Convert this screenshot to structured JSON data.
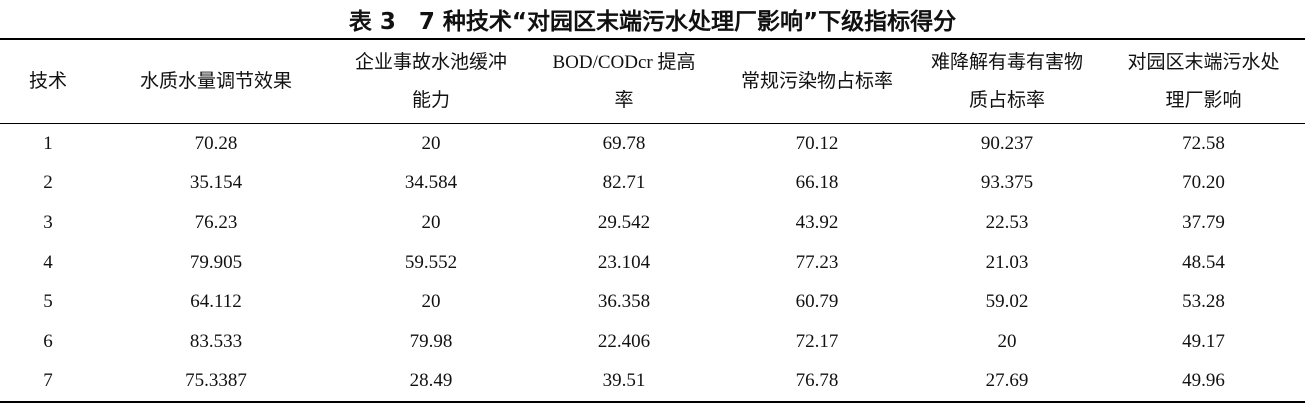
{
  "title": "表 3　7 种技术“对园区末端污水处理厂影响”下级指标得分",
  "table": {
    "header": [
      [
        "技术"
      ],
      [
        "水质水量调节效果"
      ],
      [
        "企业事故水池缓冲",
        "能力"
      ],
      [
        "BOD/CODcr 提高",
        "率"
      ],
      [
        "常规污染物占标率"
      ],
      [
        "难降解有毒有害物",
        "质占标率"
      ],
      [
        "对园区末端污水处",
        "理厂影响"
      ]
    ],
    "rows": [
      [
        "1",
        "70.28",
        "20",
        "69.78",
        "70.12",
        "90.237",
        "72.58"
      ],
      [
        "2",
        "35.154",
        "34.584",
        "82.71",
        "66.18",
        "93.375",
        "70.20"
      ],
      [
        "3",
        "76.23",
        "20",
        "29.542",
        "43.92",
        "22.53",
        "37.79"
      ],
      [
        "4",
        "79.905",
        "59.552",
        "23.104",
        "77.23",
        "21.03",
        "48.54"
      ],
      [
        "5",
        "64.112",
        "20",
        "36.358",
        "60.79",
        "59.02",
        "53.28"
      ],
      [
        "6",
        "83.533",
        "79.98",
        "22.406",
        "72.17",
        "20",
        "49.17"
      ],
      [
        "7",
        "75.3387",
        "28.49",
        "39.51",
        "76.78",
        "27.69",
        "49.96"
      ]
    ]
  }
}
